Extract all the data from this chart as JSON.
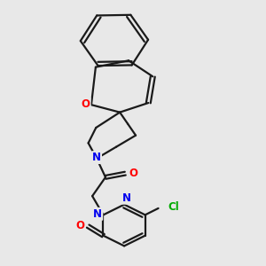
{
  "background_color": "#e8e8e8",
  "bond_color": "#1a1a1a",
  "N_color": "#0000ee",
  "O_color": "#ff0000",
  "Cl_color": "#00aa00",
  "line_width": 1.6,
  "figsize": [
    3.0,
    3.0
  ],
  "dpi": 100,
  "xlim": [
    0.3,
    2.7
  ],
  "ylim": [
    0.1,
    2.9
  ]
}
